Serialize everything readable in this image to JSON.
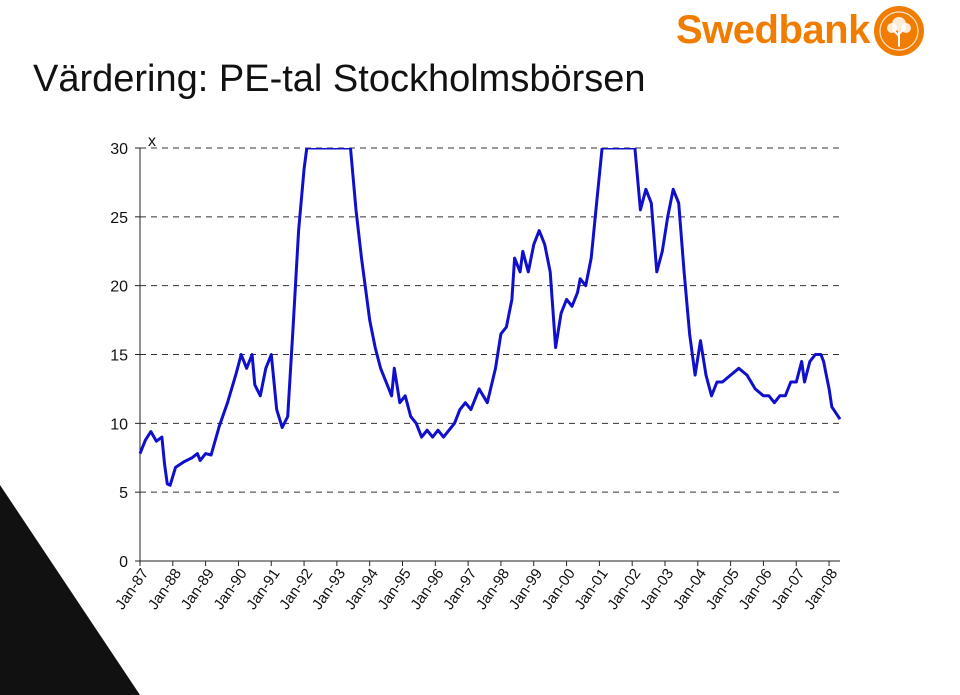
{
  "slide": {
    "title": "Värdering: PE-tal Stockholmsbörsen"
  },
  "logo": {
    "wordmark": "Swedbank",
    "seal_text": "SPARBANKEN 1820",
    "color": "#f07d00"
  },
  "chart_data": {
    "type": "line",
    "title": "",
    "xlabel": "",
    "ylabel": "",
    "unit_label": "x",
    "ylim": [
      0,
      30
    ],
    "yticks": [
      0,
      5,
      10,
      15,
      20,
      25,
      30
    ],
    "grid": "horizontal dashed",
    "x_range": [
      "Jan-87",
      "May-08"
    ],
    "categories": [
      "Jan-87",
      "Jan-88",
      "Jan-89",
      "Jan-90",
      "Jan-91",
      "Jan-92",
      "Jan-93",
      "Jan-94",
      "Jan-95",
      "Jan-96",
      "Jan-97",
      "Jan-98",
      "Jan-99",
      "Jan-00",
      "Jan-01",
      "Jan-02",
      "Jan-03",
      "Jan-04",
      "Jan-05",
      "Jan-06",
      "Jan-07",
      "Jan-08"
    ],
    "series": [
      {
        "color": "#1010cc",
        "clipped_above": 30,
        "points": [
          [
            "1987-01",
            7.8
          ],
          [
            "1987-03",
            8.8
          ],
          [
            "1987-05",
            9.4
          ],
          [
            "1987-07",
            8.7
          ],
          [
            "1987-09",
            9.0
          ],
          [
            "1987-10",
            7.0
          ],
          [
            "1987-11",
            5.6
          ],
          [
            "1987-12",
            5.5
          ],
          [
            "1988-02",
            6.8
          ],
          [
            "1988-05",
            7.2
          ],
          [
            "1988-08",
            7.5
          ],
          [
            "1988-10",
            7.8
          ],
          [
            "1988-11",
            7.3
          ],
          [
            "1989-01",
            7.8
          ],
          [
            "1989-03",
            7.7
          ],
          [
            "1989-06",
            9.8
          ],
          [
            "1989-09",
            11.5
          ],
          [
            "1989-12",
            13.5
          ],
          [
            "1990-02",
            15.0
          ],
          [
            "1990-04",
            14.0
          ],
          [
            "1990-06",
            15.0
          ],
          [
            "1990-07",
            12.8
          ],
          [
            "1990-09",
            12.0
          ],
          [
            "1990-11",
            14.0
          ],
          [
            "1991-01",
            15.0
          ],
          [
            "1991-03",
            11.0
          ],
          [
            "1991-05",
            9.7
          ],
          [
            "1991-07",
            10.5
          ],
          [
            "1991-09",
            17.0
          ],
          [
            "1991-11",
            24.0
          ],
          [
            "1992-01",
            28.5
          ],
          [
            "1992-02",
            30.0
          ],
          [
            "1993-06",
            30.0
          ],
          [
            "1993-08",
            25.5
          ],
          [
            "1993-10",
            22.0
          ],
          [
            "1994-01",
            17.5
          ],
          [
            "1994-03",
            15.5
          ],
          [
            "1994-05",
            14.0
          ],
          [
            "1994-07",
            13.0
          ],
          [
            "1994-09",
            12.0
          ],
          [
            "1994-10",
            14.0
          ],
          [
            "1994-12",
            11.5
          ],
          [
            "1995-02",
            12.0
          ],
          [
            "1995-04",
            10.5
          ],
          [
            "1995-06",
            10.0
          ],
          [
            "1995-08",
            9.0
          ],
          [
            "1995-10",
            9.5
          ],
          [
            "1995-12",
            9.0
          ],
          [
            "1996-02",
            9.5
          ],
          [
            "1996-04",
            9.0
          ],
          [
            "1996-06",
            9.5
          ],
          [
            "1996-08",
            10.0
          ],
          [
            "1996-10",
            11.0
          ],
          [
            "1996-12",
            11.5
          ],
          [
            "1997-02",
            11.0
          ],
          [
            "1997-05",
            12.5
          ],
          [
            "1997-08",
            11.5
          ],
          [
            "1997-11",
            14.0
          ],
          [
            "1998-01",
            16.5
          ],
          [
            "1998-03",
            17.0
          ],
          [
            "1998-05",
            19.0
          ],
          [
            "1998-06",
            22.0
          ],
          [
            "1998-08",
            21.0
          ],
          [
            "1998-09",
            22.5
          ],
          [
            "1998-11",
            21.0
          ],
          [
            "1999-01",
            23.0
          ],
          [
            "1999-03",
            24.0
          ],
          [
            "1999-05",
            23.0
          ],
          [
            "1999-07",
            21.0
          ],
          [
            "1999-09",
            15.5
          ],
          [
            "1999-11",
            18.0
          ],
          [
            "2000-01",
            19.0
          ],
          [
            "2000-03",
            18.5
          ],
          [
            "2000-05",
            19.5
          ],
          [
            "2000-06",
            20.5
          ],
          [
            "2000-08",
            20.0
          ],
          [
            "2000-10",
            22.0
          ],
          [
            "2000-12",
            26.0
          ],
          [
            "2001-02",
            30.0
          ],
          [
            "2002-02",
            30.0
          ],
          [
            "2002-04",
            25.5
          ],
          [
            "2002-06",
            27.0
          ],
          [
            "2002-08",
            26.0
          ],
          [
            "2002-10",
            21.0
          ],
          [
            "2002-12",
            22.5
          ],
          [
            "2003-02",
            25.0
          ],
          [
            "2003-04",
            27.0
          ],
          [
            "2003-06",
            26.0
          ],
          [
            "2003-08",
            21.0
          ],
          [
            "2003-10",
            16.5
          ],
          [
            "2003-12",
            13.5
          ],
          [
            "2004-02",
            16.0
          ],
          [
            "2004-04",
            13.5
          ],
          [
            "2004-06",
            12.0
          ],
          [
            "2004-08",
            13.0
          ],
          [
            "2004-10",
            13.0
          ],
          [
            "2005-01",
            13.5
          ],
          [
            "2005-04",
            14.0
          ],
          [
            "2005-07",
            13.5
          ],
          [
            "2005-10",
            12.5
          ],
          [
            "2006-01",
            12.0
          ],
          [
            "2006-03",
            12.0
          ],
          [
            "2006-05",
            11.5
          ],
          [
            "2006-07",
            12.0
          ],
          [
            "2006-09",
            12.0
          ],
          [
            "2006-11",
            13.0
          ],
          [
            "2007-01",
            13.0
          ],
          [
            "2007-03",
            14.5
          ],
          [
            "2007-04",
            13.0
          ],
          [
            "2007-06",
            14.5
          ],
          [
            "2007-08",
            15.0
          ],
          [
            "2007-10",
            15.0
          ],
          [
            "2007-11",
            14.5
          ],
          [
            "2007-12",
            13.5
          ],
          [
            "2008-01",
            12.5
          ],
          [
            "2008-02",
            11.2
          ],
          [
            "2008-05",
            10.3
          ]
        ]
      }
    ]
  }
}
